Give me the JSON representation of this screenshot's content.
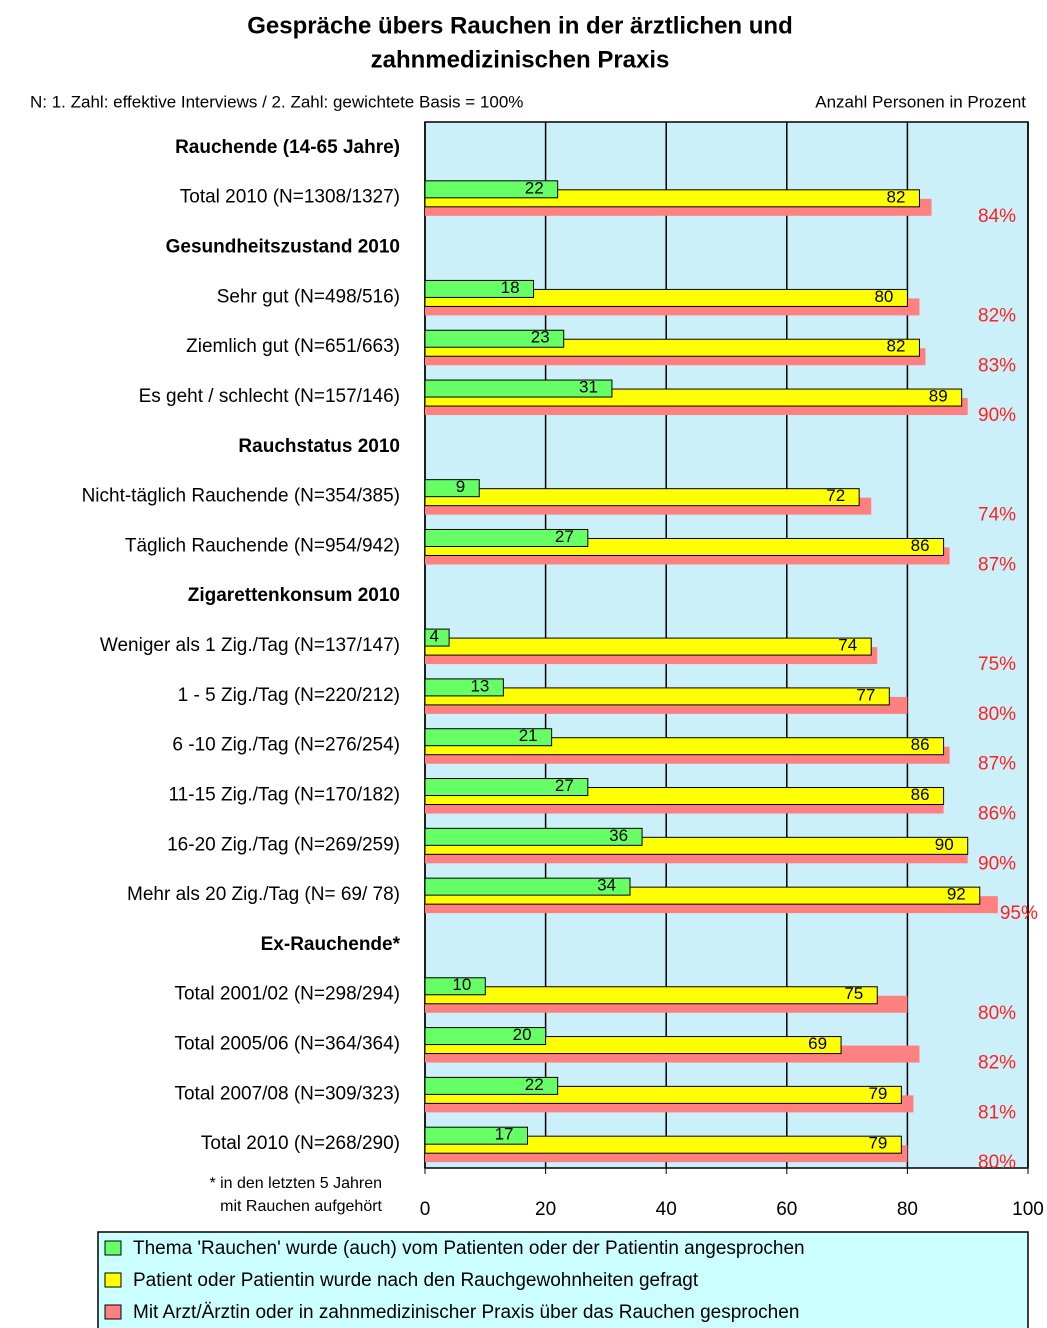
{
  "chart_data": {
    "type": "bar",
    "orientation": "horizontal",
    "title_lines": [
      "Gespräche übers Rauchen in der ärztlichen und",
      "zahnmedizinischen Praxis"
    ],
    "subtitle_left": "N: 1. Zahl: effektive Interviews / 2. Zahl: gewichtete Basis = 100%",
    "subtitle_right": "Anzahl Personen in Prozent",
    "footnote_lines": [
      "* in den letzten 5 Jahren",
      "mit Rauchen aufgehört"
    ],
    "categories": [
      "Rauchende (14-65 Jahre)",
      "Total 2010 (N=1308/1327)",
      "Gesundheitszustand 2010",
      "Sehr gut (N=498/516)",
      "Ziemlich gut (N=651/663)",
      "Es geht / schlecht (N=157/146)",
      "Rauchstatus 2010",
      "Nicht-täglich Rauchende (N=354/385)",
      "Täglich Rauchende (N=954/942)",
      "Zigarettenkonsum 2010",
      "Weniger als 1 Zig./Tag (N=137/147)",
      "1 - 5 Zig./Tag (N=220/212)",
      "6 -10 Zig./Tag (N=276/254)",
      "11-15 Zig./Tag (N=170/182)",
      "16-20 Zig./Tag (N=269/259)",
      "Mehr als 20 Zig./Tag (N=  69/  78)",
      "Ex-Rauchende*",
      "Total 2001/02 (N=298/294)",
      "Total 2005/06 (N=364/364)",
      "Total 2007/08 (N=309/323)",
      "Total 2010 (N=268/290)"
    ],
    "series": [
      {
        "name": "Thema 'Rauchen' wurde (auch) vom Patienten oder der Patientin angesprochen",
        "color": "#66ff66",
        "values": [
          null,
          22,
          null,
          18,
          23,
          31,
          null,
          9,
          27,
          null,
          4,
          13,
          21,
          27,
          36,
          34,
          null,
          10,
          20,
          22,
          17
        ]
      },
      {
        "name": "Patient oder Patientin wurde nach den Rauchgewohnheiten gefragt",
        "color": "#ffff00",
        "values": [
          null,
          82,
          null,
          80,
          82,
          89,
          null,
          72,
          86,
          null,
          74,
          77,
          86,
          86,
          90,
          92,
          null,
          75,
          69,
          79,
          79
        ]
      },
      {
        "name": "Mit Arzt/Ärztin oder in zahnmedizinischer Praxis über das Rauchen gesprochen",
        "color": "#ff8080",
        "values": [
          null,
          84,
          null,
          82,
          83,
          90,
          null,
          74,
          87,
          null,
          75,
          80,
          87,
          86,
          90,
          95,
          null,
          80,
          82,
          81,
          80
        ],
        "value_labels": [
          null,
          "84%",
          null,
          "82%",
          "83%",
          "90%",
          null,
          "74%",
          "87%",
          null,
          "75%",
          "80%",
          "87%",
          "86%",
          "90%",
          "95%",
          null,
          "80%",
          "82%",
          "81%",
          "80%"
        ]
      }
    ],
    "xlim": [
      0,
      100
    ],
    "xticks": [
      0,
      20,
      40,
      60,
      80,
      100
    ],
    "grid": true,
    "plot_background": "#ccf0fa",
    "legend_background": "#ccffff",
    "legend_position": "bottom"
  }
}
